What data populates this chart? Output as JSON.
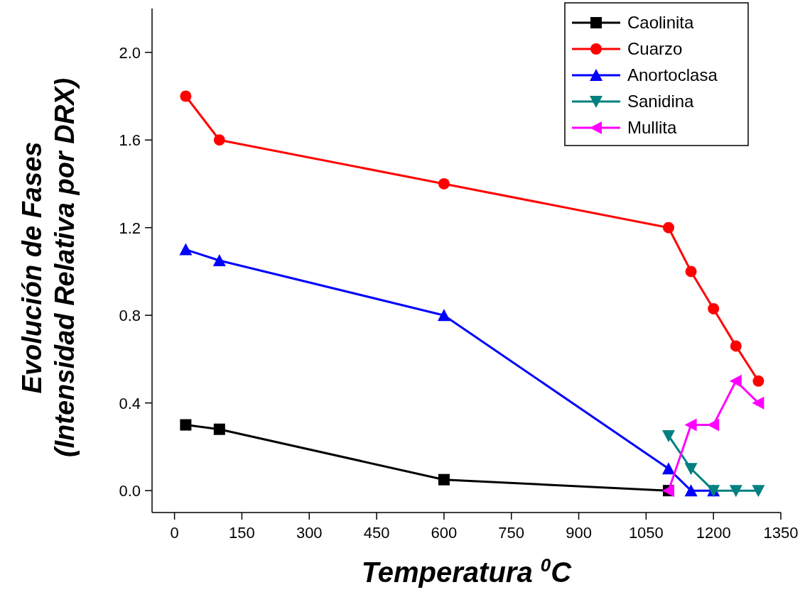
{
  "chart_data": {
    "type": "line",
    "xlabel": "Temperatura $^{0}$C",
    "ylabel": "Evolución de Fases\n(Intensidad Relativa por DRX)",
    "xlim": [
      -50,
      1350
    ],
    "xticks": [
      0,
      150,
      300,
      450,
      600,
      750,
      900,
      1050,
      1200,
      1350
    ],
    "ylim": [
      -0.1,
      2.2
    ],
    "yticks": [
      {
        "value": 0,
        "label": "0.0"
      },
      {
        "value": 0.4,
        "label": "0.4"
      },
      {
        "value": 0.8,
        "label": "0.8"
      },
      {
        "value": 1.2,
        "label": "1.2"
      },
      {
        "value": 1.6,
        "label": "1.6"
      },
      {
        "value": 2,
        "label": "2.0"
      }
    ],
    "grid": false,
    "legend": "top right",
    "line_style": "solid",
    "series": [
      {
        "name": "Caolinita",
        "color": "#000000",
        "marker": "square",
        "x": [
          25,
          100,
          600,
          1100
        ],
        "values": [
          0.3,
          0.28,
          0.05,
          0
        ]
      },
      {
        "name": "Cuarzo",
        "color": "#ff0000",
        "marker": "circle",
        "x": [
          25,
          100,
          600,
          1100,
          1150,
          1200,
          1250,
          1300
        ],
        "values": [
          1.8,
          1.6,
          1.4,
          1.2,
          1.0,
          0.83,
          0.66,
          0.5
        ]
      },
      {
        "name": "Anortoclasa",
        "color": "#0000ff",
        "marker": "triangle",
        "x": [
          25,
          100,
          600,
          1100,
          1150,
          1200
        ],
        "values": [
          1.1,
          1.05,
          0.8,
          0.1,
          0,
          0
        ]
      },
      {
        "name": "Sanidina",
        "color": "#008080",
        "marker": "triangle-down",
        "x": [
          1100,
          1150,
          1200,
          1250,
          1300
        ],
        "values": [
          0.25,
          0.1,
          0,
          0,
          0
        ]
      },
      {
        "name": "Mullita",
        "color": "#ff00ff",
        "marker": "triangle-left",
        "x": [
          1100,
          1150,
          1200,
          1250,
          1300
        ],
        "values": [
          0,
          0.3,
          0.3,
          0.5,
          0.4
        ]
      }
    ]
  }
}
